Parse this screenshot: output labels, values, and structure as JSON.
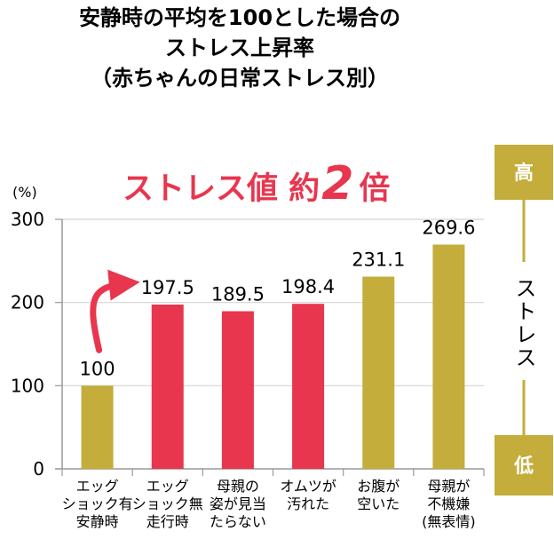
{
  "title_lines": [
    "安静時の平均を100とした場合の",
    "ストレス上昇率",
    "（赤ちゃんの日常ストレス別）"
  ],
  "headline": {
    "text": "ストレス値 約",
    "number": "2",
    "suffix": "倍"
  },
  "side_scale": {
    "high": "高",
    "low": "低",
    "label": "ストレス"
  },
  "colors": {
    "gold": "#c4ad3a",
    "red": "#e8364e",
    "grid": "#d4d4d4",
    "axis": "#999999"
  },
  "chart_data": {
    "type": "bar",
    "unit_label": "(%)",
    "ylim": [
      0,
      300
    ],
    "yticks": [
      0,
      100,
      200,
      300
    ],
    "grid": true,
    "categories": [
      [
        "エッグ",
        "ショック有",
        "安静時"
      ],
      [
        "エッグ",
        "ショック無",
        "走行時"
      ],
      [
        "母親の",
        "姿が見当",
        "たらない"
      ],
      [
        "オムツが",
        "汚れた"
      ],
      [
        "お腹が",
        "空いた"
      ],
      [
        "母親が",
        "不機嫌",
        "(無表情)"
      ]
    ],
    "values": [
      100,
      197.5,
      189.5,
      198.4,
      231.1,
      269.6
    ],
    "value_labels": [
      "100",
      "197.5",
      "189.5",
      "198.4",
      "231.1",
      "269.6"
    ],
    "bar_colors": [
      "gold",
      "red",
      "red",
      "red",
      "gold",
      "gold"
    ],
    "arrow": {
      "from_category": 0,
      "to_category": 1
    }
  }
}
